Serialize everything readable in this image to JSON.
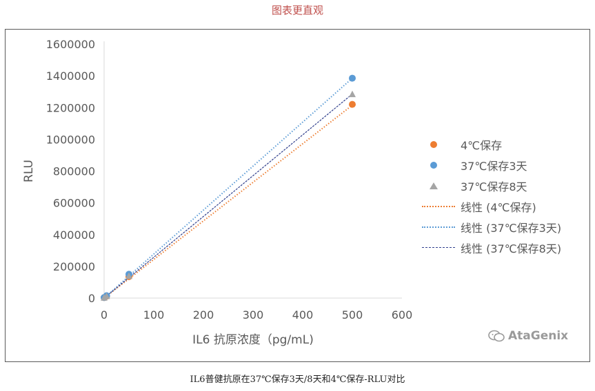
{
  "header_title": "图表更直观",
  "caption": "IL6普健抗原在37℃保存3天/8天和4℃保存-RLU对比",
  "watermark": "AtaGenix",
  "chart_data": {
    "type": "scatter",
    "xlabel": "IL6 抗原浓度（pg/mL)",
    "ylabel": "RLU",
    "xlim": [
      0,
      600
    ],
    "ylim": [
      0,
      1600000
    ],
    "xticks": [
      0,
      100,
      200,
      300,
      400,
      500,
      600
    ],
    "yticks": [
      0,
      200000,
      400000,
      600000,
      800000,
      1000000,
      1200000,
      1400000,
      1600000
    ],
    "grid": false,
    "legend_position": "right",
    "series": [
      {
        "name": "4℃保存",
        "marker": "circle",
        "color": "#ed7d31",
        "x": [
          0,
          5,
          50,
          500
        ],
        "y": [
          3000,
          12000,
          135000,
          1220000
        ],
        "trend_name": "线性 (4℃保存)",
        "trend_style": "dotted",
        "trend": [
          [
            0,
            0
          ],
          [
            500,
            1215000
          ]
        ]
      },
      {
        "name": "37℃保存3天",
        "marker": "circle",
        "color": "#5b9bd5",
        "x": [
          0,
          5,
          50,
          500
        ],
        "y": [
          3000,
          15000,
          150000,
          1385000
        ],
        "trend_name": "线性 (37℃保存3天)",
        "trend_style": "dotted",
        "trend": [
          [
            0,
            0
          ],
          [
            500,
            1385000
          ]
        ]
      },
      {
        "name": "37℃保存8天",
        "marker": "triangle",
        "color": "#a5a5a5",
        "x": [
          0,
          5,
          50,
          500
        ],
        "y": [
          3000,
          13000,
          140000,
          1285000
        ],
        "trend_name": "线性 (37℃保存8天)",
        "trend_style": "dashed",
        "trend_color": "#2f3e8c",
        "trend": [
          [
            0,
            0
          ],
          [
            500,
            1285000
          ]
        ]
      }
    ]
  }
}
